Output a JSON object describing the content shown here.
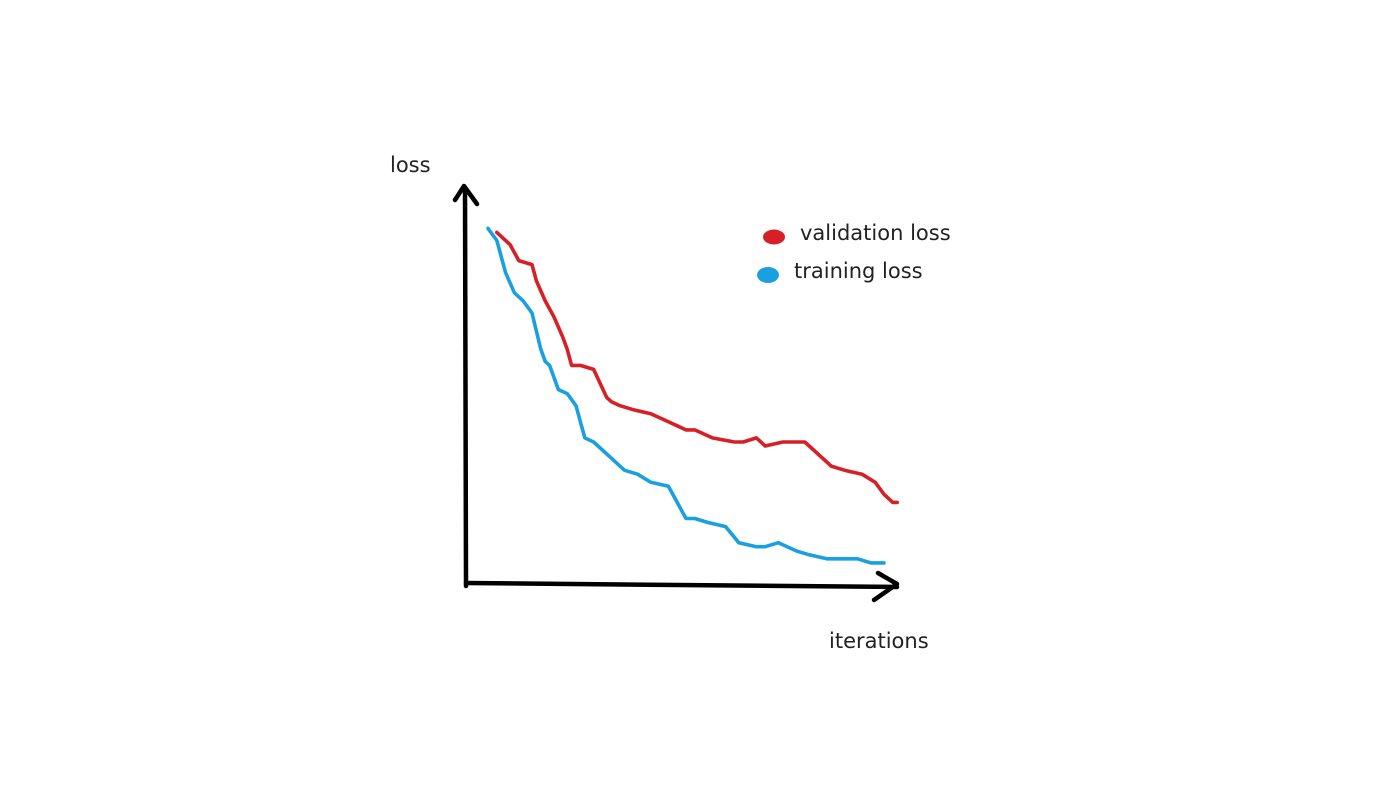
{
  "chart_data": {
    "type": "line",
    "xlabel": "iterations",
    "ylabel": "loss",
    "xlim": [
      0,
      100
    ],
    "ylim": [
      0,
      100
    ],
    "grid": false,
    "legend": "top-right",
    "series": [
      {
        "name": "validation loss",
        "color": "#d62027",
        "x": [
          7,
          10,
          12,
          15,
          16,
          18,
          20,
          22,
          23,
          24,
          26,
          29,
          32,
          33,
          35,
          38,
          42,
          46,
          48,
          50,
          52,
          56,
          61,
          63,
          66,
          68,
          72,
          77,
          80,
          83,
          86,
          90,
          93,
          95,
          97,
          98
        ],
        "y": [
          87,
          84,
          80,
          79,
          75,
          70,
          66,
          61,
          58,
          54,
          54,
          53,
          46,
          45,
          44,
          43,
          42,
          40,
          39,
          38,
          38,
          36,
          35,
          35,
          36,
          34,
          35,
          35,
          32,
          29,
          28,
          27,
          25,
          22,
          20,
          20
        ]
      },
      {
        "name": "training loss",
        "color": "#1a9fe0",
        "x": [
          5,
          7,
          9,
          11,
          13,
          15,
          17,
          18,
          19,
          21,
          23,
          25,
          27,
          29,
          31,
          33,
          36,
          39,
          42,
          46,
          48,
          50,
          52,
          55,
          59,
          62,
          66,
          68,
          71,
          75,
          78,
          82,
          86,
          89,
          92,
          95
        ],
        "y": [
          88,
          85,
          77,
          72,
          70,
          67,
          58,
          55,
          54,
          48,
          47,
          44,
          36,
          35,
          33,
          31,
          28,
          27,
          25,
          24,
          20,
          16,
          16,
          15,
          14,
          10,
          9,
          9,
          10,
          8,
          7,
          6,
          6,
          6,
          5,
          5
        ]
      }
    ]
  }
}
